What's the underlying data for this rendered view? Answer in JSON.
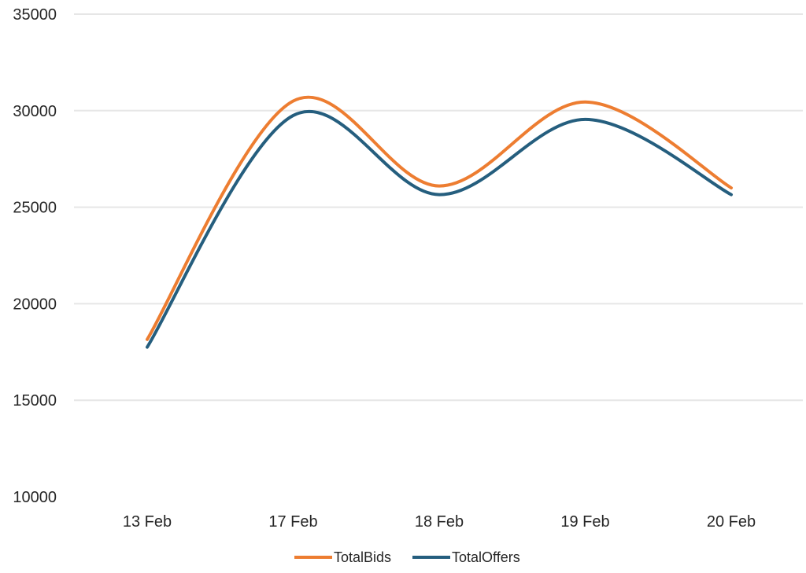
{
  "chart_data": {
    "type": "line",
    "smooth": true,
    "title": "",
    "xlabel": "",
    "ylabel": "",
    "ylim": [
      10000,
      35000
    ],
    "y_ticks": [
      10000,
      15000,
      20000,
      25000,
      30000,
      35000
    ],
    "grid": true,
    "legend_position": "bottom",
    "categories": [
      "13 Feb",
      "17 Feb",
      "18 Feb",
      "19 Feb",
      "20 Feb"
    ],
    "series": [
      {
        "name": "TotalBids",
        "color": "#ED7D31",
        "values": [
          18150,
          30500,
          26100,
          30450,
          26000
        ]
      },
      {
        "name": "TotalOffers",
        "color": "#255E7E",
        "values": [
          17750,
          29750,
          25650,
          29550,
          25650
        ]
      }
    ]
  }
}
